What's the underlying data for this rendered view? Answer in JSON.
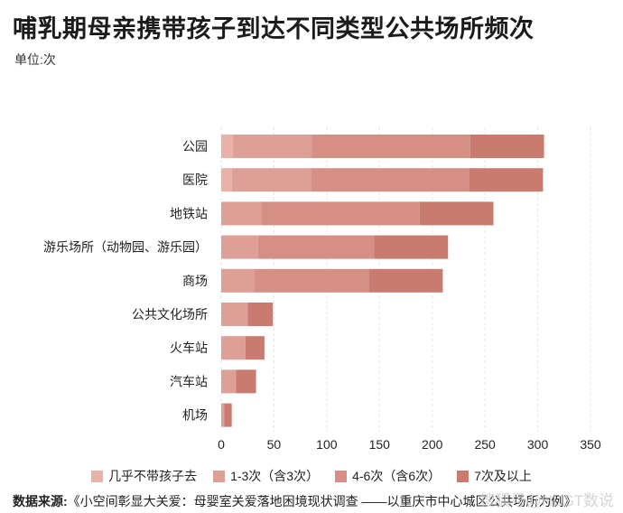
{
  "title": "哺乳期母亲携带孩子到达不同类型公共场所频次",
  "unit": "单位:次",
  "source": {
    "label": "数据来源:",
    "text": "《小空间彰显大关爱：母婴室关爱落地困境现状调查 ——以重庆市中心城区公共场所为例》"
  },
  "watermark": "搜狐号@HUST数说",
  "chart_data": {
    "type": "bar",
    "orientation": "horizontal",
    "stacked": true,
    "categories": [
      "公园",
      "医院",
      "地铁站",
      "游乐场所（动物园、游乐园）",
      "商场",
      "公共文化场所",
      "火车站",
      "汽车站",
      "机场"
    ],
    "series": [
      {
        "name": "几乎不带孩子去",
        "color": "#e8b2a9",
        "values": [
          11,
          10,
          0,
          0,
          0,
          0,
          0,
          0,
          0
        ]
      },
      {
        "name": "1-3次（含3次）",
        "color": "#dea096",
        "values": [
          75,
          75,
          38,
          35,
          31,
          25,
          23,
          14,
          3
        ]
      },
      {
        "name": "4-6次（含6次）",
        "color": "#d58f84",
        "values": [
          150,
          150,
          150,
          110,
          109,
          0,
          0,
          0,
          0
        ]
      },
      {
        "name": "7次及以上",
        "color": "#c97b70",
        "values": [
          70,
          70,
          70,
          70,
          70,
          24,
          18,
          19,
          7
        ]
      }
    ],
    "xlim": [
      0,
      350
    ],
    "xticks": [
      0,
      50,
      100,
      150,
      200,
      250,
      300,
      350
    ],
    "grid": true,
    "legend_position": "bottom"
  }
}
